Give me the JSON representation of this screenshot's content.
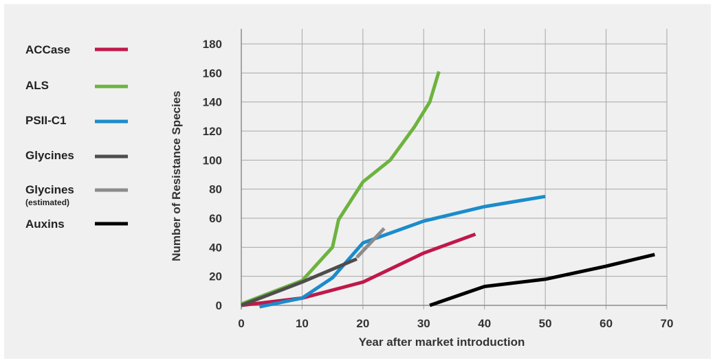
{
  "chart_data": {
    "type": "line",
    "title": "",
    "xlabel": "Year after market introduction",
    "ylabel": "Number of Resistance Species",
    "xlim": [
      0,
      70
    ],
    "ylim": [
      0,
      180
    ],
    "x_ticks": [
      0,
      10,
      20,
      30,
      40,
      50,
      60,
      70
    ],
    "y_ticks": [
      0,
      20,
      40,
      60,
      80,
      100,
      120,
      140,
      160,
      180
    ],
    "grid": true,
    "legend_position": "left",
    "series": [
      {
        "name": "ACCase",
        "color": "#c0184a",
        "points": [
          [
            0,
            0
          ],
          [
            10,
            5
          ],
          [
            20,
            16
          ],
          [
            30,
            36
          ],
          [
            38.5,
            49
          ]
        ]
      },
      {
        "name": "ALS",
        "color": "#6db33f",
        "points": [
          [
            0,
            1
          ],
          [
            10,
            17
          ],
          [
            15,
            40
          ],
          [
            16,
            59
          ],
          [
            20,
            85
          ],
          [
            24.5,
            100
          ],
          [
            28.5,
            123
          ],
          [
            31,
            140
          ],
          [
            32.5,
            161
          ]
        ]
      },
      {
        "name": "PSII-C1",
        "color": "#1a8ccc",
        "points": [
          [
            3,
            -1
          ],
          [
            10,
            5
          ],
          [
            15,
            19
          ],
          [
            20,
            43
          ],
          [
            30,
            58
          ],
          [
            40,
            68
          ],
          [
            50,
            75
          ]
        ]
      },
      {
        "name": "Glycines",
        "color": "#4d4d4d",
        "points": [
          [
            0,
            0
          ],
          [
            10,
            16
          ],
          [
            19,
            32
          ]
        ]
      },
      {
        "name": "Glycines",
        "name_sub": "(estimated)",
        "color": "#8c8c8c",
        "points": [
          [
            19,
            33
          ],
          [
            23.5,
            53
          ]
        ]
      },
      {
        "name": "Auxins",
        "color": "#000000",
        "points": [
          [
            31,
            0
          ],
          [
            40,
            13
          ],
          [
            50,
            18
          ],
          [
            60,
            27
          ],
          [
            68,
            35
          ]
        ]
      }
    ]
  }
}
